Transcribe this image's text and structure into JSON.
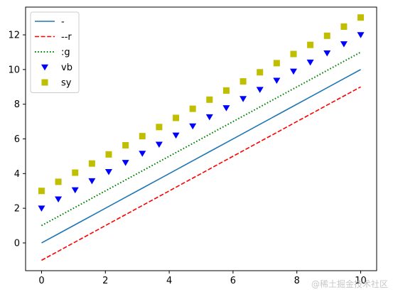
{
  "chart_data": {
    "type": "line",
    "title": "",
    "xlabel": "",
    "ylabel": "",
    "xlim": [
      -0.5,
      10.5
    ],
    "ylim": [
      -1.6,
      13.6
    ],
    "xticks": [
      0,
      2,
      4,
      6,
      8,
      10
    ],
    "yticks": [
      0,
      2,
      4,
      6,
      8,
      10,
      12
    ],
    "grid": false,
    "legend_position": "upper-left",
    "x": [
      0,
      0.526,
      1.053,
      1.579,
      2.105,
      2.632,
      3.158,
      3.684,
      4.211,
      4.737,
      5.263,
      5.789,
      6.316,
      6.842,
      7.368,
      7.895,
      8.421,
      8.947,
      9.474,
      10
    ],
    "series": [
      {
        "name": "-",
        "style": "solid-line",
        "color": "#1f77b4",
        "offset": 0
      },
      {
        "name": "--r",
        "style": "dashed-line",
        "color": "#ff0000",
        "offset": -1
      },
      {
        "name": ":g",
        "style": "dotted-line",
        "color": "#008000",
        "offset": 1
      },
      {
        "name": "vb",
        "style": "triangle-down-marker",
        "color": "#0000ff",
        "offset": 2
      },
      {
        "name": "sy",
        "style": "square-marker",
        "color": "#bfbf00",
        "offset": 3
      }
    ]
  },
  "watermark": "@稀土掘金技术社区"
}
